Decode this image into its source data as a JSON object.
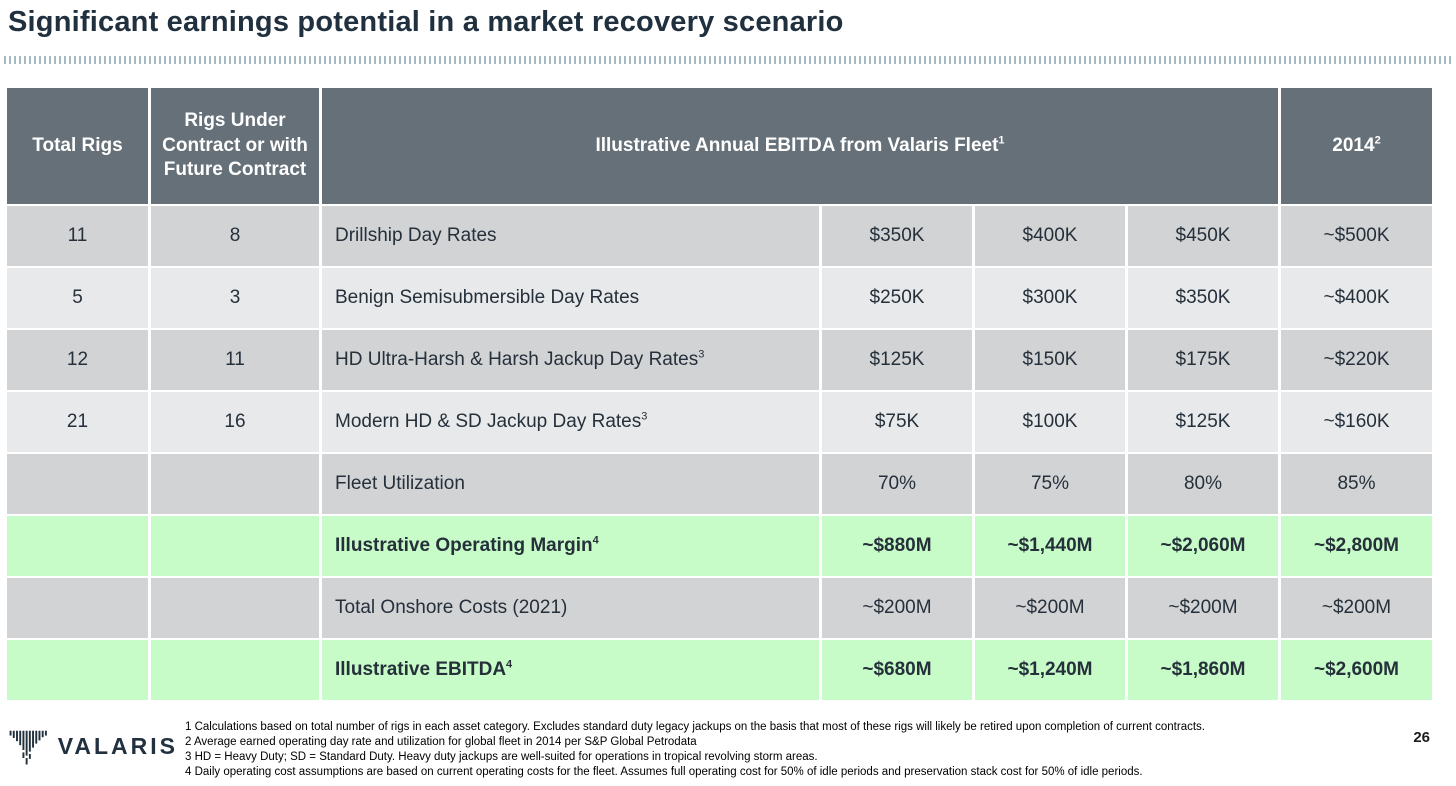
{
  "slide": {
    "title": "Significant earnings potential in a market recovery scenario"
  },
  "colors": {
    "header_bg": "#657079",
    "row_dark": "#d2d3d5",
    "row_light": "#e8e9ea",
    "row_green": "#c7fbc7",
    "title_text": "#20303e",
    "divider_dots": "#a6b8c3"
  },
  "table": {
    "header": {
      "col_total_rigs": "Total Rigs",
      "col_contracted": "Rigs Under Contract or with Future Contract",
      "col_ebitda": {
        "text": "Illustrative Annual EBITDA from Valaris Fleet",
        "sup": "1"
      },
      "col_2014": {
        "text": "2014",
        "sup": "2"
      }
    },
    "rows": [
      {
        "total_rigs": "11",
        "contracted": "8",
        "label": "Drillship Day Rates",
        "sup": "",
        "values": [
          "$350K",
          "$400K",
          "$450K"
        ],
        "y2014": "~$500K",
        "style": "dark",
        "bold": false
      },
      {
        "total_rigs": "5",
        "contracted": "3",
        "label": "Benign Semisubmersible Day Rates",
        "sup": "",
        "values": [
          "$250K",
          "$300K",
          "$350K"
        ],
        "y2014": "~$400K",
        "style": "light",
        "bold": false
      },
      {
        "total_rigs": "12",
        "contracted": "11",
        "label": "HD Ultra-Harsh & Harsh Jackup Day Rates",
        "sup": "3",
        "values": [
          "$125K",
          "$150K",
          "$175K"
        ],
        "y2014": "~$220K",
        "style": "dark",
        "bold": false
      },
      {
        "total_rigs": "21",
        "contracted": "16",
        "label": "Modern HD & SD Jackup Day Rates",
        "sup": "3",
        "values": [
          "$75K",
          "$100K",
          "$125K"
        ],
        "y2014": "~$160K",
        "style": "light",
        "bold": false
      },
      {
        "total_rigs": "",
        "contracted": "",
        "label": "Fleet Utilization",
        "sup": "",
        "values": [
          "70%",
          "75%",
          "80%"
        ],
        "y2014": "85%",
        "style": "dark",
        "bold": false
      },
      {
        "total_rigs": "",
        "contracted": "",
        "label": "Illustrative Operating Margin",
        "sup": "4",
        "values": [
          "~$880M",
          "~$1,440M",
          "~$2,060M"
        ],
        "y2014": "~$2,800M",
        "style": "green",
        "bold": true
      },
      {
        "total_rigs": "",
        "contracted": "",
        "label": "Total Onshore Costs (2021)",
        "sup": "",
        "values": [
          "~$200M",
          "~$200M",
          "~$200M"
        ],
        "y2014": "~$200M",
        "style": "dark",
        "bold": false
      },
      {
        "total_rigs": "",
        "contracted": "",
        "label": "Illustrative EBITDA",
        "sup": "4",
        "values": [
          "~$680M",
          "~$1,240M",
          "~$1,860M"
        ],
        "y2014": "~$2,600M",
        "style": "green",
        "bold": true
      }
    ]
  },
  "footer": {
    "logo_text": "VALARIS",
    "page_number": "26",
    "footnotes": [
      "1 Calculations based on total number of rigs in each asset category. Excludes standard duty legacy jackups on the basis that most of these rigs will likely be retired upon completion of current contracts.",
      "2 Average earned operating day rate and utilization for global fleet in 2014 per S&P Global Petrodata",
      "3 HD = Heavy Duty; SD = Standard Duty. Heavy duty jackups are well-suited for operations in tropical revolving storm areas.",
      "4 Daily operating cost assumptions are based on current operating costs for the fleet. Assumes full operating cost for 50% of idle periods and preservation stack cost for 50% of idle periods."
    ]
  }
}
